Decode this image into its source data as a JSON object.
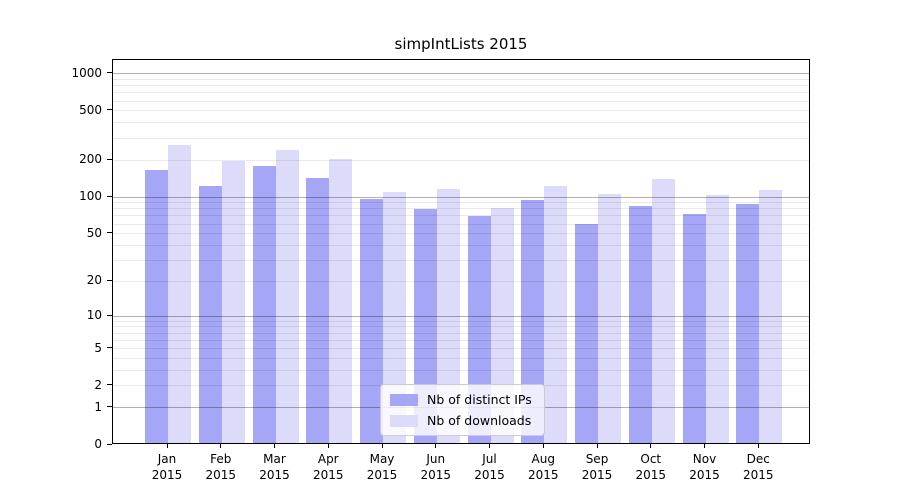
{
  "chart_data": {
    "type": "bar",
    "title": "simpIntLists 2015",
    "year_label": "2015",
    "categories": [
      "Jan",
      "Feb",
      "Mar",
      "Apr",
      "May",
      "Jun",
      "Jul",
      "Aug",
      "Sep",
      "Oct",
      "Nov",
      "Dec"
    ],
    "series": [
      {
        "name": "Nb of distinct IPs",
        "color": "#a6a6f7",
        "values": [
          165,
          124,
          180,
          142,
          96,
          80,
          70,
          95,
          60,
          85,
          72,
          87
        ]
      },
      {
        "name": "Nb of downloads",
        "color": "#dcdcfa",
        "values": [
          265,
          196,
          240,
          205,
          110,
          117,
          82,
          124,
          106,
          140,
          103,
          114
        ]
      }
    ],
    "yscale": "log1p",
    "ylim": [
      0,
      1290
    ],
    "yticks": [
      0,
      1,
      2,
      5,
      10,
      20,
      50,
      100,
      200,
      500,
      1000
    ],
    "minor_gridlines": [
      2,
      3,
      4,
      5,
      6,
      7,
      8,
      9,
      20,
      30,
      40,
      50,
      60,
      70,
      80,
      90,
      200,
      300,
      400,
      500,
      600,
      700,
      800,
      900
    ],
    "major_gridlines": [
      1,
      10,
      100,
      1000
    ],
    "grid": true,
    "legend_position": "lower center",
    "axis_color": "#000000"
  }
}
